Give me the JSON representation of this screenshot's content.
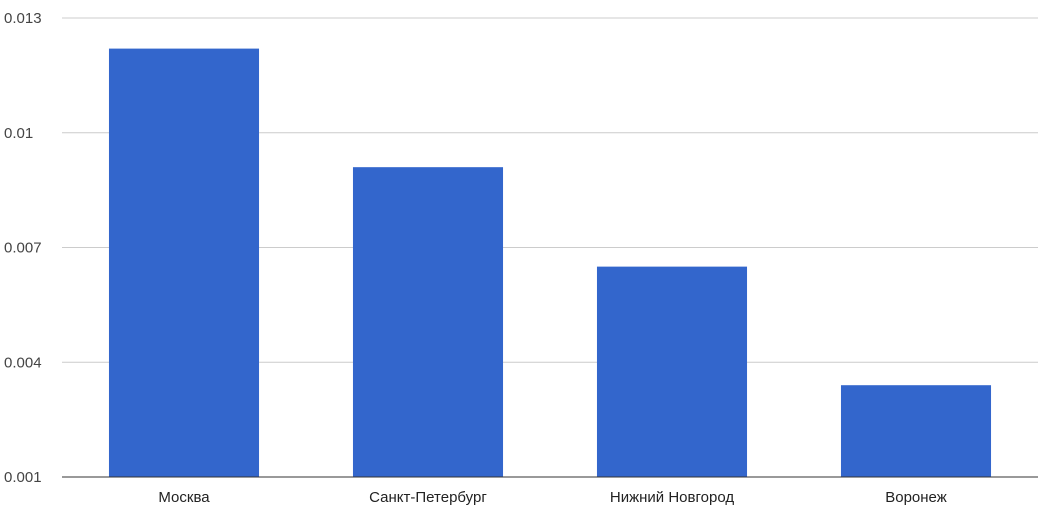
{
  "chart_data": {
    "type": "bar",
    "title": "",
    "xlabel": "",
    "ylabel": "",
    "categories": [
      "Москва",
      "Санкт-Петербург",
      "Нижний Новгород",
      "Воронеж"
    ],
    "series": [
      {
        "values": [
          0.0122,
          0.0091,
          0.0065,
          0.0034
        ]
      }
    ],
    "ylim": [
      0.001,
      0.013
    ],
    "yticks": [
      "0.013",
      "0.01",
      "0.007",
      "0.004",
      "0.001"
    ],
    "grid": true,
    "legend": "none",
    "colors": {
      "bar": "#3366cc",
      "grid": "#cccccc",
      "axis": "#333333"
    }
  }
}
